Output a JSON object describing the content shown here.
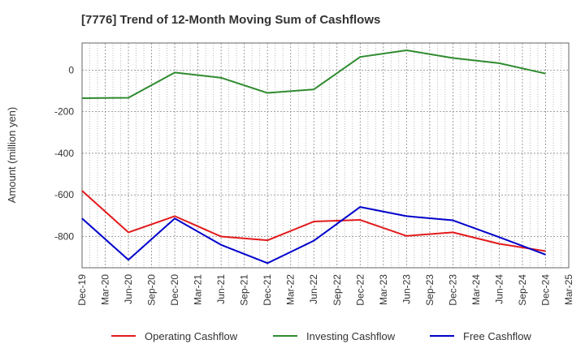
{
  "title": "[7776]  Trend of 12-Month Moving Sum of Cashflows",
  "chart_data": {
    "type": "line",
    "title": "[7776]  Trend of 12-Month Moving Sum of Cashflows",
    "xlabel": "",
    "ylabel": "Amount (million yen)",
    "ylim": [
      -950,
      130
    ],
    "yticks": [
      0,
      -200,
      -400,
      -600,
      -800
    ],
    "ytick_labels": [
      "0",
      "-200",
      "-400",
      "-600",
      "-800"
    ],
    "x_tick_labels": [
      "Dec-19",
      "Mar-20",
      "Jun-20",
      "Sep-20",
      "Dec-20",
      "Mar-21",
      "Jun-21",
      "Sep-21",
      "Dec-21",
      "Mar-22",
      "Jun-22",
      "Sep-22",
      "Dec-22",
      "Mar-23",
      "Jun-23",
      "Sep-23",
      "Dec-23",
      "Mar-24",
      "Jun-24",
      "Sep-24",
      "Dec-24",
      "Mar-25"
    ],
    "x": [
      "Dec-19",
      "Jun-20",
      "Dec-20",
      "Jun-21",
      "Dec-21",
      "Jun-22",
      "Dec-22",
      "Jun-23",
      "Dec-23",
      "Jun-24",
      "Dec-24"
    ],
    "grid": true,
    "legend_position": "bottom",
    "series": [
      {
        "name": "Operating Cashflow",
        "color": "#e31a1c",
        "values": [
          -580,
          -780,
          -702,
          -800,
          -818,
          -728,
          -720,
          -797,
          -780,
          -835,
          -870
        ]
      },
      {
        "name": "Investing Cashflow",
        "color": "#2e8b2e",
        "values": [
          -135,
          -133,
          -12,
          -37,
          -110,
          -93,
          63,
          95,
          58,
          33,
          -17
        ]
      },
      {
        "name": "Free Cashflow",
        "color": "#0000cc",
        "values": [
          -713,
          -912,
          -713,
          -840,
          -928,
          -820,
          -658,
          -702,
          -722,
          -803,
          -887
        ]
      }
    ]
  }
}
